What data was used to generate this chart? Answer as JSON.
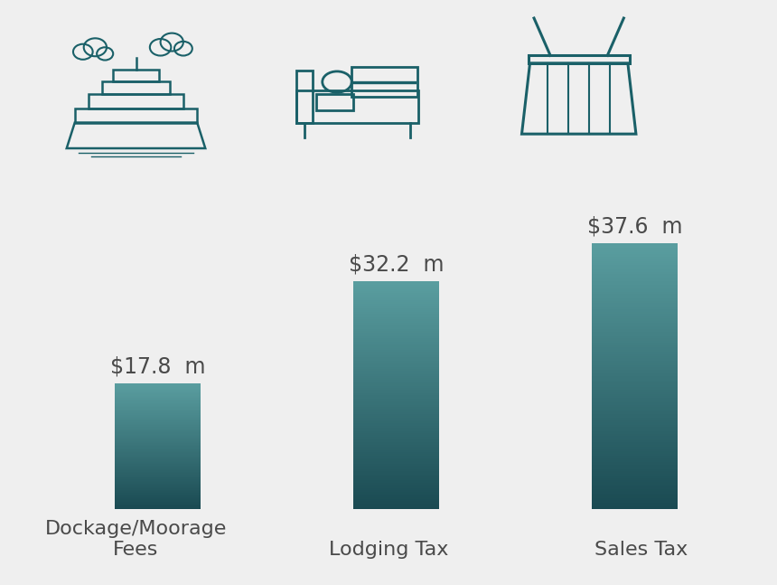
{
  "categories": [
    "Dockage/Moorage\nFees",
    "Lodging Tax",
    "Sales Tax"
  ],
  "values": [
    17.8,
    32.2,
    37.6
  ],
  "labels": [
    "$17.8  m",
    "$32.2  m",
    "$37.6  m"
  ],
  "bar_color_top": "#5a9ea0",
  "bar_color_bottom": "#1a4a52",
  "background_color": "#efefef",
  "text_color": "#4a4a4a",
  "label_fontsize": 17,
  "category_fontsize": 16,
  "bar_width": 0.36,
  "ylim": [
    0,
    48
  ],
  "icon_color": "#1a6068",
  "bar_positions": [
    0,
    1,
    2
  ],
  "xlim": [
    -0.5,
    2.5
  ]
}
